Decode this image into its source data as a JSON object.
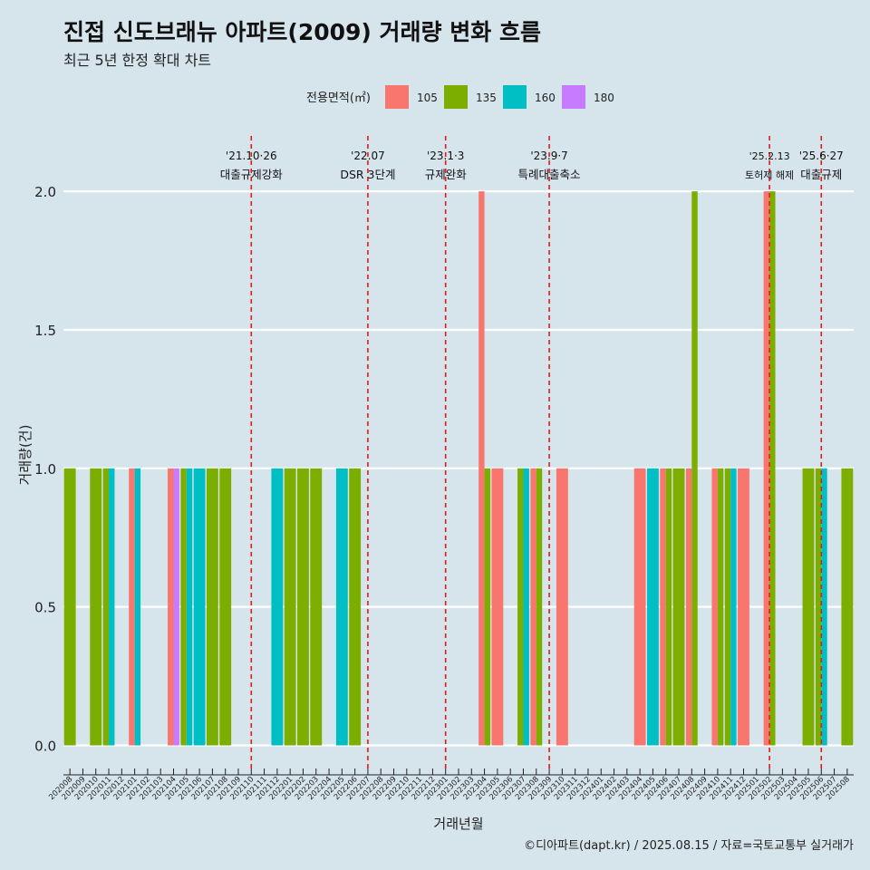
{
  "title": "진접 신도브래뉴 아파트(2009) 거래량 변화 흐름",
  "subtitle": "최근 5년 한정 확대 차트",
  "caption": "©디아파트(dapt.kr) / 2025.08.15 / 자료=국토교통부 실거래가",
  "chart_data": {
    "type": "bar",
    "xlabel": "거래년월",
    "ylabel": "거래량(건)",
    "ylim": [
      -0.09,
      2.2
    ],
    "yticks": [
      0.0,
      0.5,
      1.0,
      1.5,
      2.0
    ],
    "ytick_labels": [
      "0.0",
      "0.5",
      "1.0",
      "1.5",
      "2.0"
    ],
    "grid": true,
    "legend": {
      "title": "전용면적(㎡)",
      "placement": "top",
      "entries": [
        {
          "name": "105",
          "color": "#f8766d"
        },
        {
          "name": "135",
          "color": "#7cae00"
        },
        {
          "name": "160",
          "color": "#00bfc4"
        },
        {
          "name": "180",
          "color": "#c77cff"
        }
      ]
    },
    "categories": [
      "202008",
      "202009",
      "202010",
      "202011",
      "202012",
      "202101",
      "202102",
      "202103",
      "202104",
      "202105",
      "202106",
      "202107",
      "202108",
      "202109",
      "202110",
      "202111",
      "202112",
      "202201",
      "202202",
      "202203",
      "202204",
      "202205",
      "202206",
      "202207",
      "202208",
      "202209",
      "202210",
      "202211",
      "202212",
      "202301",
      "202302",
      "202303",
      "202304",
      "202305",
      "202306",
      "202307",
      "202308",
      "202309",
      "202310",
      "202311",
      "202312",
      "202401",
      "202402",
      "202403",
      "202404",
      "202405",
      "202406",
      "202407",
      "202408",
      "202409",
      "202410",
      "202411",
      "202412",
      "202501",
      "202502",
      "202503",
      "202504",
      "202505",
      "202506",
      "202507",
      "202508"
    ],
    "bars": [
      {
        "month": "202008",
        "segments": [
          {
            "area": "135",
            "count": 1
          }
        ]
      },
      {
        "month": "202010",
        "segments": [
          {
            "area": "135",
            "count": 1
          }
        ]
      },
      {
        "month": "202011",
        "segments": [
          {
            "area": "135",
            "count": 1
          },
          {
            "area": "160",
            "count": 1
          }
        ]
      },
      {
        "month": "202101",
        "segments": [
          {
            "area": "105",
            "count": 1
          },
          {
            "area": "160",
            "count": 1
          }
        ]
      },
      {
        "month": "202104",
        "segments": [
          {
            "area": "105",
            "count": 1
          },
          {
            "area": "180",
            "count": 1
          }
        ]
      },
      {
        "month": "202105",
        "segments": [
          {
            "area": "135",
            "count": 1
          },
          {
            "area": "160",
            "count": 1
          }
        ]
      },
      {
        "month": "202106",
        "segments": [
          {
            "area": "160",
            "count": 1
          }
        ]
      },
      {
        "month": "202107",
        "segments": [
          {
            "area": "135",
            "count": 1
          }
        ]
      },
      {
        "month": "202108",
        "segments": [
          {
            "area": "135",
            "count": 1
          }
        ]
      },
      {
        "month": "202112",
        "segments": [
          {
            "area": "160",
            "count": 1
          }
        ]
      },
      {
        "month": "202201",
        "segments": [
          {
            "area": "135",
            "count": 1
          }
        ]
      },
      {
        "month": "202202",
        "segments": [
          {
            "area": "135",
            "count": 1
          }
        ]
      },
      {
        "month": "202203",
        "segments": [
          {
            "area": "135",
            "count": 1
          }
        ]
      },
      {
        "month": "202205",
        "segments": [
          {
            "area": "160",
            "count": 1
          }
        ]
      },
      {
        "month": "202206",
        "segments": [
          {
            "area": "135",
            "count": 1
          }
        ]
      },
      {
        "month": "202304",
        "segments": [
          {
            "area": "105",
            "count": 2
          },
          {
            "area": "135",
            "count": 1
          }
        ]
      },
      {
        "month": "202305",
        "segments": [
          {
            "area": "105",
            "count": 1
          }
        ]
      },
      {
        "month": "202307",
        "segments": [
          {
            "area": "135",
            "count": 1
          },
          {
            "area": "160",
            "count": 1
          }
        ]
      },
      {
        "month": "202308",
        "segments": [
          {
            "area": "105",
            "count": 1
          },
          {
            "area": "135",
            "count": 1
          }
        ]
      },
      {
        "month": "202310",
        "segments": [
          {
            "area": "105",
            "count": 1
          }
        ]
      },
      {
        "month": "202404",
        "segments": [
          {
            "area": "105",
            "count": 1
          }
        ]
      },
      {
        "month": "202405",
        "segments": [
          {
            "area": "160",
            "count": 1
          }
        ]
      },
      {
        "month": "202406",
        "segments": [
          {
            "area": "105",
            "count": 1
          },
          {
            "area": "135",
            "count": 1
          }
        ]
      },
      {
        "month": "202407",
        "segments": [
          {
            "area": "135",
            "count": 1
          }
        ]
      },
      {
        "month": "202408",
        "segments": [
          {
            "area": "105",
            "count": 1
          },
          {
            "area": "135",
            "count": 2
          }
        ]
      },
      {
        "month": "202410",
        "segments": [
          {
            "area": "105",
            "count": 1
          },
          {
            "area": "135",
            "count": 1
          }
        ]
      },
      {
        "month": "202411",
        "segments": [
          {
            "area": "135",
            "count": 1
          },
          {
            "area": "160",
            "count": 1
          }
        ]
      },
      {
        "month": "202412",
        "segments": [
          {
            "area": "105",
            "count": 1
          }
        ]
      },
      {
        "month": "202502",
        "segments": [
          {
            "area": "105",
            "count": 2
          },
          {
            "area": "135",
            "count": 2
          }
        ]
      },
      {
        "month": "202505",
        "segments": [
          {
            "area": "135",
            "count": 1
          }
        ]
      },
      {
        "month": "202506",
        "segments": [
          {
            "area": "135",
            "count": 1
          },
          {
            "area": "160",
            "count": 1
          }
        ]
      },
      {
        "month": "202508",
        "segments": [
          {
            "area": "135",
            "count": 1
          }
        ]
      }
    ],
    "events": [
      {
        "month": "202110",
        "date": "'21.10·26",
        "label": "대출규제강화"
      },
      {
        "month": "202207",
        "date": "'22.07",
        "label": "DSR 3단계"
      },
      {
        "month": "202301",
        "date": "'23.1·3",
        "label": "규제완화"
      },
      {
        "month": "202309",
        "date": "'23.9·7",
        "label": "특례대출축소"
      },
      {
        "month": "202502",
        "date": "'25.2.13",
        "label": "토허제 해제"
      },
      {
        "month": "202506",
        "date": "'25.6·27",
        "label": "대출규제"
      }
    ]
  }
}
